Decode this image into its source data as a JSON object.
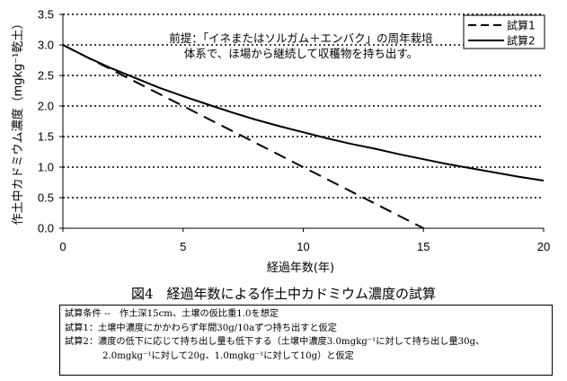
{
  "chart_data": {
    "type": "line",
    "title": "",
    "xlabel": "経過年数(年)",
    "ylabel": "作土中カドミウム濃度（mgkg⁻¹乾土）",
    "xlim": [
      0,
      20
    ],
    "ylim": [
      0,
      3.5
    ],
    "xticks": [
      0,
      5,
      10,
      15,
      20
    ],
    "yticks": [
      0.0,
      0.5,
      1.0,
      1.5,
      2.0,
      2.5,
      3.0,
      3.5
    ],
    "xtick_labels": [
      "0",
      "5",
      "10",
      "15",
      "20"
    ],
    "ytick_labels": [
      "0.0",
      "0.5",
      "1.0",
      "1.5",
      "2.0",
      "2.5",
      "3.0",
      "3.5"
    ],
    "grid": "horizontal dotted",
    "legend_position": "top-right",
    "series": [
      {
        "name": "試算1",
        "style": "dashed",
        "color": "#000000",
        "x": [
          0,
          1,
          2,
          3,
          4,
          5,
          6,
          7,
          8,
          9,
          10,
          11,
          12,
          13,
          14,
          15
        ],
        "y": [
          3.0,
          2.8,
          2.6,
          2.4,
          2.2,
          2.0,
          1.8,
          1.6,
          1.4,
          1.2,
          1.0,
          0.8,
          0.6,
          0.4,
          0.2,
          0.0
        ]
      },
      {
        "name": "試算2",
        "style": "solid",
        "color": "#000000",
        "x": [
          0,
          1,
          2,
          3,
          4,
          5,
          6,
          7,
          8,
          9,
          10,
          11,
          12,
          13,
          14,
          15,
          16,
          17,
          18,
          19,
          20
        ],
        "y": [
          3.0,
          2.8,
          2.62,
          2.46,
          2.3,
          2.16,
          2.03,
          1.9,
          1.78,
          1.67,
          1.57,
          1.47,
          1.38,
          1.3,
          1.21,
          1.13,
          1.05,
          0.98,
          0.91,
          0.84,
          0.78
        ]
      }
    ],
    "annotation": [
      "前提：「イネまたはソルガム＋エンバク」の周年栽培",
      "体系で、ほ場から継続して収穫物を持ち出す。"
    ]
  },
  "caption": "図4　経過年数による作土中カドミウム濃度の試算",
  "notes": [
    "試算条件 --　作土深15cm、土壌の仮比重1.0を想定",
    "試算1：土壌中濃度にかかわらず年間30g/10aずつ持ち出すと仮定",
    "試算2：濃度の低下に応じて持ち出し量も低下する（土壌中濃度3.0mgkg⁻¹に対して持ち出し量30g、",
    "2.0mgkg⁻¹に対して20g、1.0mgkg⁻¹に対して10g）と仮定"
  ]
}
